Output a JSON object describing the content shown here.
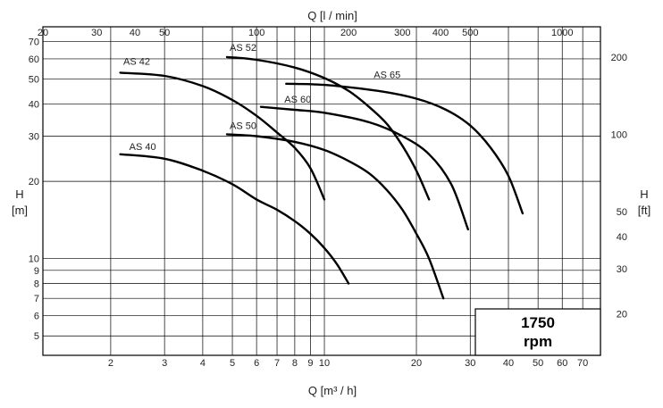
{
  "chart_data": {
    "type": "line",
    "top_axis_title": "Q [l / min]",
    "bottom_axis_title": "Q [m³ / h]",
    "left_axis_title_line1": "H",
    "left_axis_title_line2": "[m]",
    "right_axis_title_line1": "H",
    "right_axis_title_line2": "[ft]",
    "x_scale": "log",
    "y_scale": "log",
    "x_range_m3h": [
      1.2,
      80
    ],
    "y_range_m": [
      4.2,
      80
    ],
    "grid": true,
    "bottom_ticks": [
      "2",
      "3",
      "4",
      "5",
      "6",
      "7",
      "8",
      "9",
      "10",
      "20",
      "30",
      "40",
      "50",
      "60",
      "70"
    ],
    "top_ticks": [
      "20",
      "30",
      "40",
      "50",
      "100",
      "200",
      "300",
      "400",
      "500",
      "1000"
    ],
    "left_ticks": [
      "5",
      "6",
      "7",
      "8",
      "9",
      "10",
      "20",
      "30",
      "40",
      "50",
      "60",
      "70"
    ],
    "right_ticks": [
      "20",
      "30",
      "40",
      "50",
      "100",
      "200"
    ],
    "speed_box": {
      "line1": "1750",
      "line2": "rpm"
    },
    "series": [
      {
        "name": "AS 40",
        "x": [
          2.15,
          3,
          4,
          5,
          6,
          7,
          8,
          9,
          10,
          11,
          12
        ],
        "y": [
          25.5,
          24.5,
          22,
          19.5,
          17,
          15.5,
          14,
          12.5,
          11,
          9.5,
          8
        ]
      },
      {
        "name": "AS 42",
        "x": [
          2.15,
          3,
          4,
          5,
          6,
          7,
          8,
          9,
          10
        ],
        "y": [
          53,
          51.5,
          47,
          41.5,
          36,
          31,
          27,
          22.5,
          17
        ]
      },
      {
        "name": "AS 50",
        "x": [
          4.8,
          6,
          8,
          10,
          12,
          14,
          16,
          18,
          20,
          22,
          24.5
        ],
        "y": [
          30.5,
          30,
          28.5,
          26.5,
          24,
          21.5,
          18.5,
          15.5,
          12.5,
          10,
          7
        ]
      },
      {
        "name": "AS 52",
        "x": [
          4.8,
          6,
          8,
          10,
          12,
          14,
          16,
          18,
          20,
          22
        ],
        "y": [
          61,
          59.5,
          55.5,
          50.5,
          45,
          39,
          33.5,
          27.5,
          22,
          17
        ]
      },
      {
        "name": "AS 60",
        "x": [
          6.2,
          8,
          10,
          14,
          18,
          22,
          26,
          29.5
        ],
        "y": [
          39,
          38,
          37,
          34,
          30,
          25.5,
          19.5,
          13
        ]
      },
      {
        "name": "AS 65",
        "x": [
          7.5,
          10,
          15,
          20,
          25,
          30,
          35,
          40,
          44.5
        ],
        "y": [
          48,
          47.5,
          45,
          42,
          38,
          33,
          27,
          21,
          15
        ]
      }
    ],
    "labels": [
      {
        "series": "AS 42",
        "text": "AS 42",
        "x": 2.2,
        "y": 57
      },
      {
        "series": "AS 52",
        "text": "AS 52",
        "x": 4.9,
        "y": 64.5
      },
      {
        "series": "AS 65",
        "text": "AS 65",
        "x": 14.5,
        "y": 50.5
      },
      {
        "series": "AS 60",
        "text": "AS 60",
        "x": 7.4,
        "y": 40.5
      },
      {
        "series": "AS 50",
        "text": "AS 50",
        "x": 4.9,
        "y": 32
      },
      {
        "series": "AS 40",
        "text": "AS 40",
        "x": 2.3,
        "y": 26.5
      }
    ]
  }
}
